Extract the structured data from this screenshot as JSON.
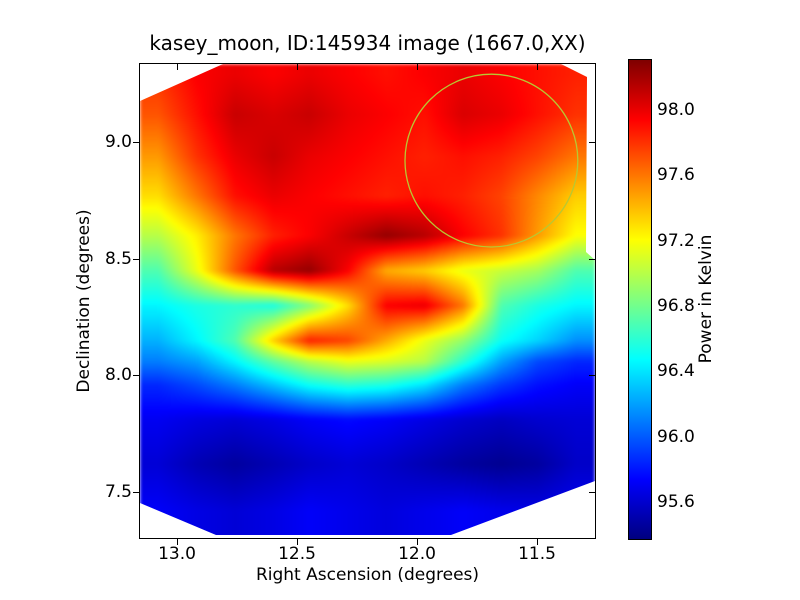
{
  "title": "kasey_moon, ID:145934 image (1667.0,XX)",
  "axes": {
    "x_label": "Right Ascension (degrees)",
    "y_label": "Declination (degrees)",
    "x_tick_values": [
      13.0,
      12.5,
      12.0,
      11.5
    ],
    "y_tick_values": [
      9.0,
      8.5,
      8.0,
      7.5
    ],
    "x_range_degrees": [
      13.16,
      11.26
    ],
    "y_range_degrees": [
      7.3,
      9.34
    ]
  },
  "colorbar": {
    "label": "Power in Kelvin",
    "tick_values": [
      98.0,
      97.6,
      97.2,
      96.8,
      96.4,
      96.0,
      95.6
    ],
    "vmin": 95.37,
    "vmax": 98.31,
    "colormap": "jet"
  },
  "annotation_circle": {
    "ra_deg": 11.69,
    "dec_deg": 8.92,
    "radius_deg": 0.36,
    "stroke_color": "#b8c832"
  },
  "chart_data": {
    "type": "heatmap",
    "title": "kasey_moon, ID:145934 image (1667.0,XX)",
    "xlabel": "Right Ascension (degrees)",
    "ylabel": "Declination (degrees)",
    "colorbar_label": "Power in Kelvin",
    "colormap": "jet",
    "vmin": 95.37,
    "vmax": 98.31,
    "x_axis_reversed": true,
    "x_ra_degrees": [
      13.08,
      12.92,
      12.76,
      12.6,
      12.45,
      12.29,
      12.13,
      11.97,
      11.81,
      11.65,
      11.5,
      11.34
    ],
    "y_dec_degrees": [
      9.29,
      9.12,
      8.94,
      8.77,
      8.6,
      8.45,
      8.3,
      8.15,
      8.06,
      7.96,
      7.81,
      7.62,
      7.42
    ],
    "values_kelvin": [
      [
        97.8,
        97.95,
        98.0,
        97.95,
        98.0,
        97.95,
        97.9,
        97.95,
        98.0,
        97.95,
        97.9,
        97.85
      ],
      [
        97.7,
        97.9,
        98.1,
        98.05,
        98.1,
        98.0,
        97.95,
        97.9,
        98.05,
        98.0,
        97.9,
        97.8
      ],
      [
        97.5,
        97.8,
        98.0,
        98.1,
        98.0,
        97.95,
        97.9,
        97.85,
        97.9,
        97.85,
        97.75,
        97.6
      ],
      [
        97.3,
        97.6,
        97.9,
        98.0,
        97.95,
        97.9,
        97.85,
        97.9,
        97.85,
        97.75,
        97.55,
        97.35
      ],
      [
        97.0,
        97.25,
        97.6,
        97.85,
        97.95,
        98.1,
        98.25,
        98.15,
        97.95,
        97.8,
        97.5,
        97.2
      ],
      [
        96.7,
        97.15,
        97.7,
        98.15,
        98.25,
        97.95,
        97.45,
        97.35,
        97.15,
        97.05,
        96.95,
        96.7
      ],
      [
        96.45,
        96.55,
        96.6,
        96.55,
        96.85,
        97.3,
        97.95,
        98.0,
        97.6,
        96.7,
        96.55,
        96.45
      ],
      [
        96.25,
        96.45,
        96.7,
        97.35,
        97.85,
        97.75,
        97.45,
        97.15,
        96.9,
        96.5,
        96.35,
        96.15
      ],
      [
        96.1,
        96.2,
        96.45,
        96.75,
        97.0,
        97.15,
        97.1,
        97.0,
        96.6,
        96.2,
        95.95,
        95.85
      ],
      [
        95.85,
        95.95,
        96.1,
        96.3,
        96.5,
        96.6,
        96.55,
        96.4,
        96.1,
        95.9,
        95.78,
        95.72
      ],
      [
        95.7,
        95.65,
        95.62,
        95.66,
        95.72,
        95.76,
        95.72,
        95.66,
        95.6,
        95.56,
        95.6,
        95.62
      ],
      [
        95.62,
        95.52,
        95.46,
        95.52,
        95.58,
        95.62,
        95.58,
        95.52,
        95.46,
        95.42,
        95.46,
        95.58
      ],
      [
        95.72,
        95.66,
        95.62,
        95.66,
        95.72,
        95.68,
        95.64,
        95.68,
        95.72,
        95.68,
        95.66,
        95.7
      ]
    ]
  }
}
